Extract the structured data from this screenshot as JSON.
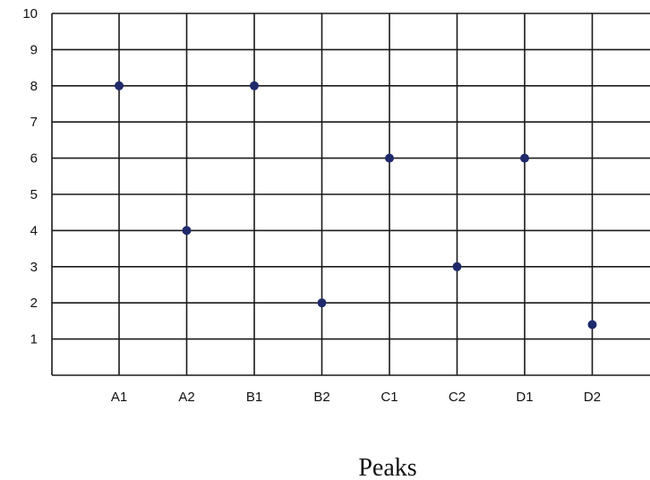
{
  "chart_data": {
    "type": "scatter",
    "title": "",
    "xlabel": "Peaks",
    "ylabel": "",
    "categories": [
      "A1",
      "A2",
      "B1",
      "B2",
      "C1",
      "C2",
      "D1",
      "D2"
    ],
    "series": [
      {
        "values": [
          8,
          4,
          8,
          2,
          6,
          3,
          6,
          1.4
        ]
      }
    ],
    "y_ticks": [
      "1",
      "2",
      "3",
      "4",
      "5",
      "6",
      "7",
      "8",
      "9",
      "10"
    ],
    "ylim": [
      0,
      10
    ],
    "grid": true,
    "colors": {
      "point": "#1f2a6b",
      "grid": "#1a1a1a"
    }
  }
}
